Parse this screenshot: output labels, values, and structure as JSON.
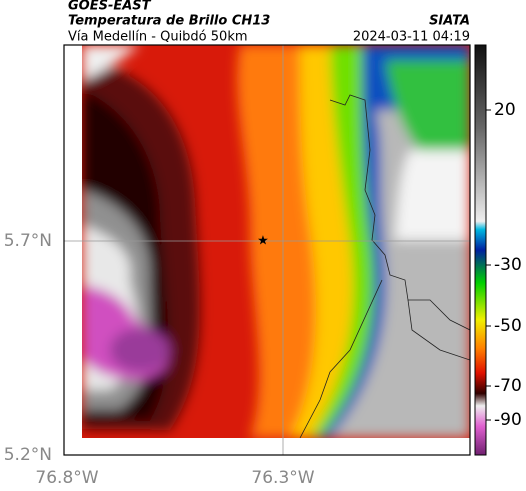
{
  "header": {
    "source": "GOES-EAST",
    "title": "Temperatura de Brillo CH13",
    "subtitle": "Vía Medellín - Quibdó 50km",
    "agency": "SIATA",
    "timestamp": "2024-03-11 04:19"
  },
  "axes": {
    "lat_labels": [
      "5.7°N",
      "5.2°N"
    ],
    "lon_labels": [
      "76.8°W",
      "76.3°W"
    ]
  },
  "colorbar": {
    "ticks": [
      20,
      -30,
      -50,
      -70,
      -90
    ]
  }
}
